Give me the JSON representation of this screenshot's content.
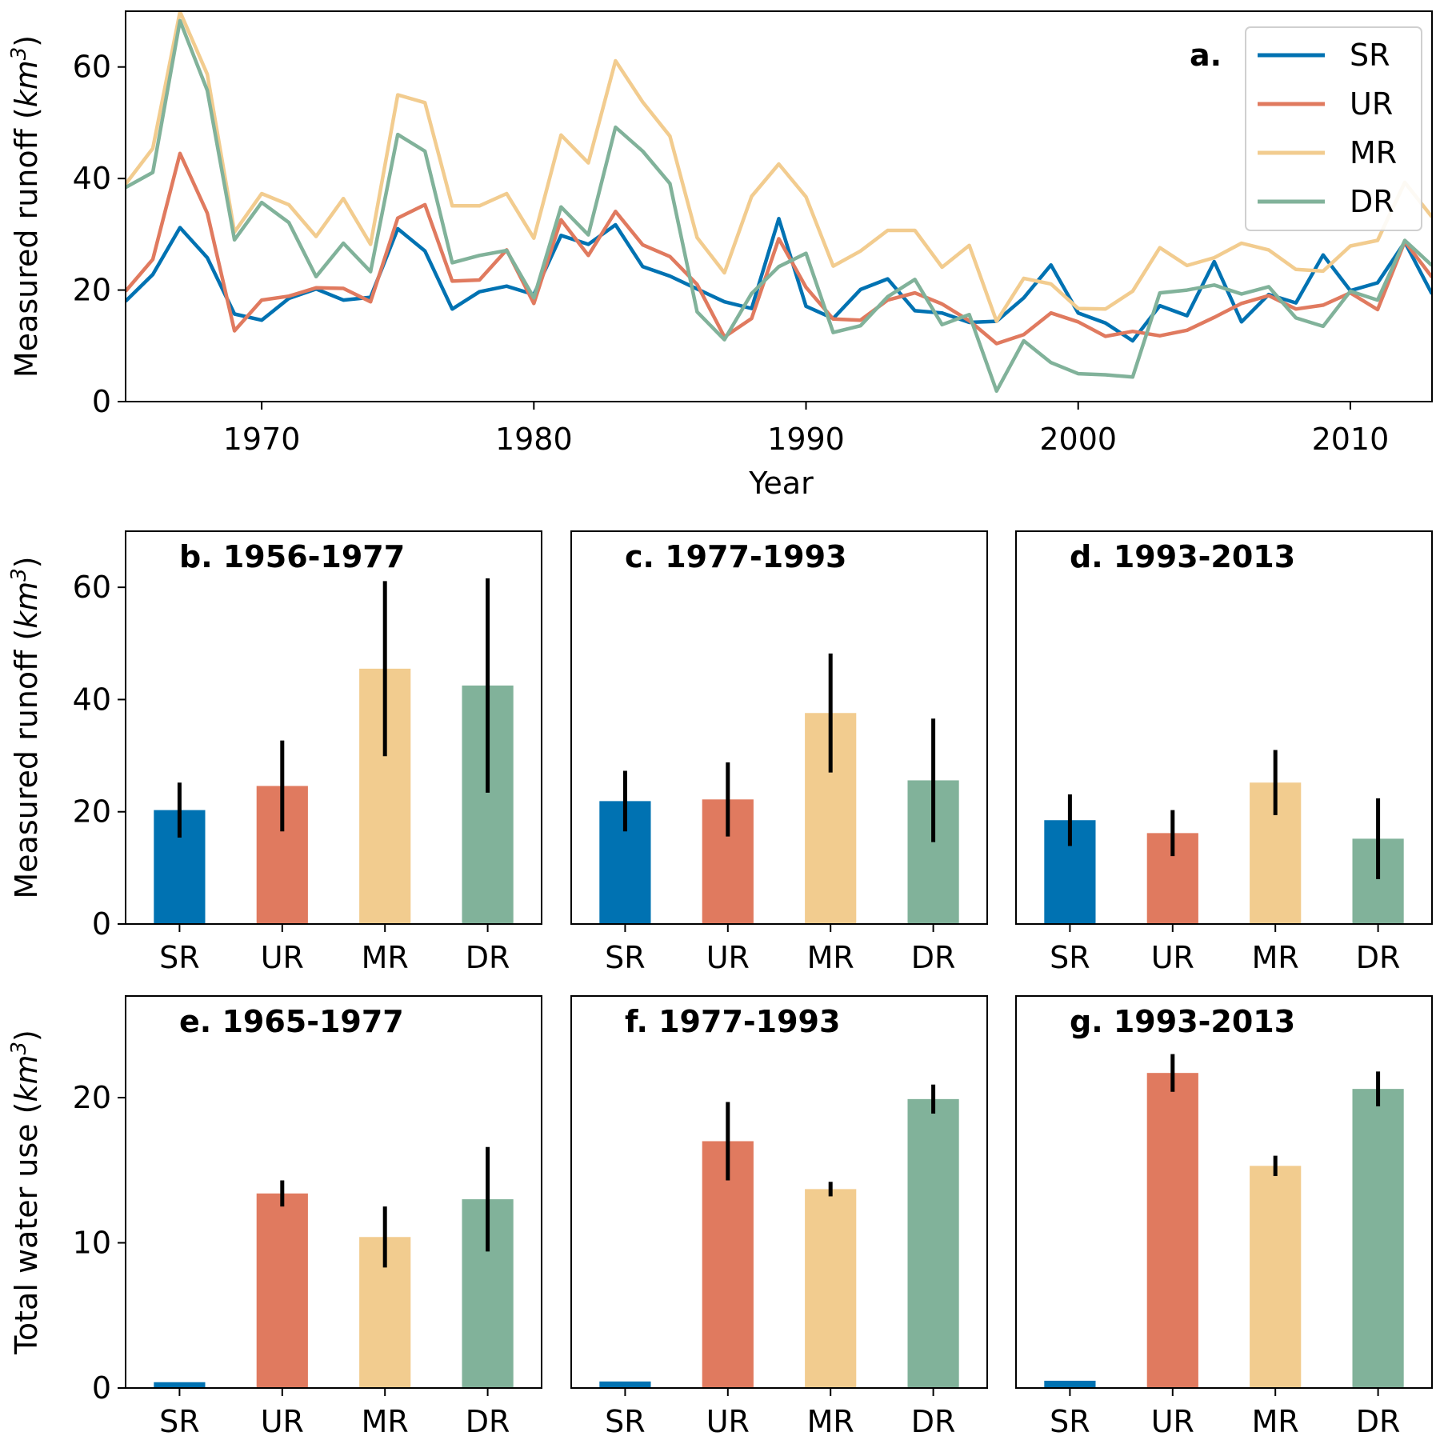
{
  "colors": {
    "SR": "#0072b2",
    "UR": "#e07a5f",
    "MR": "#f2cc8f",
    "DR": "#81b29a"
  },
  "chart_data": [
    {
      "type": "line",
      "panel_label": "a.",
      "xlabel": "Year",
      "ylabel_text": "Measured runoff (",
      "ylabel_unit": "km",
      "ylabel_sup": "3",
      "ylabel_close": ")",
      "xlim": [
        1965,
        2013
      ],
      "ylim": [
        0,
        70
      ],
      "xticks": [
        1970,
        1980,
        1990,
        2000,
        2010
      ],
      "yticks": [
        0,
        20,
        40,
        60
      ],
      "legend_position": "top-right",
      "x": [
        1965,
        1966,
        1967,
        1968,
        1969,
        1970,
        1971,
        1972,
        1973,
        1974,
        1975,
        1976,
        1977,
        1978,
        1979,
        1980,
        1981,
        1982,
        1983,
        1984,
        1985,
        1986,
        1987,
        1988,
        1989,
        1990,
        1991,
        1992,
        1993,
        1994,
        1995,
        1996,
        1997,
        1998,
        1999,
        2000,
        2001,
        2002,
        2003,
        2004,
        2005,
        2006,
        2007,
        2008,
        2009,
        2010,
        2011,
        2012,
        2013
      ],
      "series": [
        {
          "name": "SR",
          "values": [
            18,
            22.8,
            31.2,
            25.8,
            15.7,
            14.6,
            18.5,
            20.2,
            18.2,
            18.7,
            31,
            27,
            16.6,
            19.7,
            20.7,
            19.2,
            29.8,
            28.2,
            31.7,
            24.2,
            22.5,
            20.2,
            17.9,
            16.7,
            32.8,
            17.1,
            14.9,
            20.1,
            22,
            16.3,
            15.9,
            14.2,
            14.4,
            18.6,
            24.5,
            15.9,
            14.1,
            10.9,
            17.2,
            15.4,
            25.1,
            14.3,
            19.2,
            17.7,
            26.3,
            19.9,
            21.3,
            28.6,
            19.3
          ]
        },
        {
          "name": "UR",
          "values": [
            19.8,
            25.5,
            44.5,
            33.8,
            12.7,
            18.2,
            18.9,
            20.4,
            20.3,
            17.9,
            32.9,
            35.3,
            21.6,
            21.8,
            27.2,
            17.6,
            32.6,
            26.2,
            34.1,
            28.1,
            26,
            21,
            11.6,
            14.9,
            29.2,
            20.5,
            14.8,
            14.6,
            18.2,
            19.5,
            17.5,
            14.5,
            10.4,
            12,
            15.9,
            14.3,
            11.7,
            12.6,
            11.8,
            12.8,
            15.1,
            17.6,
            19,
            16.6,
            17.3,
            19.5,
            16.5,
            28.7,
            22.3
          ]
        },
        {
          "name": "MR",
          "values": [
            39,
            45.4,
            69.9,
            58.7,
            30.4,
            37.3,
            35.3,
            29.6,
            36.4,
            28.2,
            55,
            53.6,
            35.1,
            35.1,
            37.3,
            29.3,
            47.8,
            42.8,
            61.1,
            53.7,
            47.6,
            29.4,
            23.1,
            36.8,
            42.6,
            36.7,
            24.3,
            27,
            30.7,
            30.7,
            24.1,
            28,
            14.4,
            22.1,
            21.1,
            16.7,
            16.6,
            19.8,
            27.6,
            24.4,
            25.8,
            28.4,
            27.2,
            23.7,
            23.4,
            27.9,
            28.9,
            39.3,
            33.1
          ]
        },
        {
          "name": "DR",
          "values": [
            38.4,
            41.1,
            68.3,
            55.8,
            29,
            35.7,
            32.1,
            22.4,
            28.4,
            23.3,
            47.9,
            44.9,
            24.9,
            26.2,
            27.1,
            18.6,
            34.9,
            29.9,
            49.2,
            44.9,
            39.1,
            16.1,
            11.1,
            19.4,
            24.2,
            26.6,
            12.4,
            13.6,
            18.8,
            21.9,
            13.8,
            15.6,
            1.9,
            10.9,
            7,
            5,
            4.8,
            4.4,
            19.5,
            20,
            20.9,
            19.3,
            20.6,
            15,
            13.5,
            19.8,
            18.2,
            28.9,
            24.4
          ]
        }
      ]
    },
    {
      "type": "bar",
      "title": "b. 1956-1977",
      "ylabel_text": "Measured runoff (",
      "ylabel_unit": "km",
      "ylabel_sup": "3",
      "ylabel_close": ")",
      "categories": [
        "SR",
        "UR",
        "MR",
        "DR"
      ],
      "ylim": [
        0,
        70
      ],
      "yticks": [
        0,
        20,
        40,
        60
      ],
      "values": [
        20.3,
        24.6,
        45.5,
        42.5
      ],
      "error": [
        4.9,
        8.1,
        15.6,
        19.1
      ]
    },
    {
      "type": "bar",
      "title": "c. 1977-1993",
      "categories": [
        "SR",
        "UR",
        "MR",
        "DR"
      ],
      "ylim": [
        0,
        70
      ],
      "values": [
        21.9,
        22.2,
        37.6,
        25.6
      ],
      "error": [
        5.4,
        6.6,
        10.6,
        11
      ]
    },
    {
      "type": "bar",
      "title": "d. 1993-2013",
      "categories": [
        "SR",
        "UR",
        "MR",
        "DR"
      ],
      "ylim": [
        0,
        70
      ],
      "values": [
        18.5,
        16.2,
        25.2,
        15.2
      ],
      "error": [
        4.6,
        4.1,
        5.8,
        7.2
      ]
    },
    {
      "type": "bar",
      "title": "e. 1965-1977",
      "ylabel_text": "Total water use (",
      "ylabel_unit": "km",
      "ylabel_sup": "3",
      "ylabel_close": ")",
      "categories": [
        "SR",
        "UR",
        "MR",
        "DR"
      ],
      "ylim": [
        0,
        27
      ],
      "yticks": [
        0,
        10,
        20
      ],
      "values": [
        0.4,
        13.4,
        10.4,
        13
      ],
      "error": [
        0,
        0.9,
        2.1,
        3.6
      ]
    },
    {
      "type": "bar",
      "title": "f. 1977-1993",
      "categories": [
        "SR",
        "UR",
        "MR",
        "DR"
      ],
      "ylim": [
        0,
        27
      ],
      "values": [
        0.45,
        17,
        13.7,
        19.9
      ],
      "error": [
        0,
        2.7,
        0.5,
        1
      ]
    },
    {
      "type": "bar",
      "title": "g. 1993-2013",
      "categories": [
        "SR",
        "UR",
        "MR",
        "DR"
      ],
      "ylim": [
        0,
        27
      ],
      "values": [
        0.5,
        21.7,
        15.3,
        20.6
      ],
      "error": [
        0,
        1.3,
        0.7,
        1.2
      ]
    }
  ]
}
